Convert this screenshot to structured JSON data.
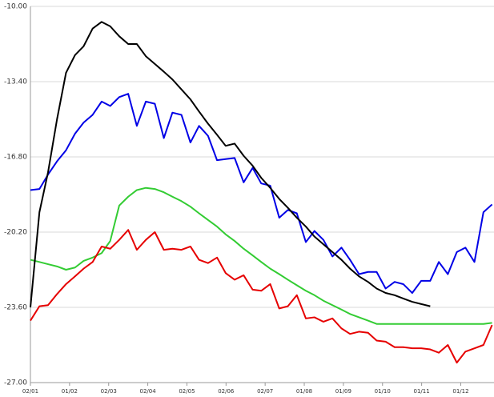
{
  "chart_data": {
    "type": "line",
    "x": [
      0,
      0.23,
      0.45,
      0.68,
      0.91,
      1.14,
      1.36,
      1.59,
      1.82,
      2.04,
      2.27,
      2.5,
      2.72,
      2.95,
      3.18,
      3.41,
      3.63,
      3.86,
      4.09,
      4.31,
      4.54,
      4.77,
      4.99,
      5.22,
      5.45,
      5.68,
      5.9,
      6.13,
      6.36,
      6.58,
      6.81,
      7.04,
      7.26,
      7.49,
      7.72,
      7.95,
      8.17,
      8.4,
      8.63,
      8.85,
      9.08,
      9.31,
      9.53,
      9.76,
      9.99,
      10.22,
      10.44,
      10.67,
      10.9,
      11.12,
      11.35,
      11.58,
      11.8
    ],
    "series": [
      {
        "color": "#33cc33",
        "values": [
          -21.45,
          -21.55,
          -21.65,
          -21.75,
          -21.9,
          -21.8,
          -21.5,
          -21.35,
          -21.15,
          -20.6,
          -19.0,
          -18.6,
          -18.3,
          -18.2,
          -18.25,
          -18.4,
          -18.6,
          -18.8,
          -19.05,
          -19.35,
          -19.65,
          -19.95,
          -20.3,
          -20.6,
          -20.95,
          -21.25,
          -21.55,
          -21.85,
          -22.1,
          -22.35,
          -22.6,
          -22.85,
          -23.05,
          -23.3,
          -23.5,
          -23.7,
          -23.9,
          -24.05,
          -24.2,
          -24.35,
          -24.35,
          -24.35,
          -24.35,
          -24.35,
          -24.35,
          -24.35,
          -24.35,
          -24.35,
          -24.35,
          -24.35,
          -24.35,
          -24.35,
          -24.3
        ]
      },
      {
        "color": "#e60000",
        "values": [
          -24.2,
          -23.55,
          -23.5,
          -23.0,
          -22.55,
          -22.2,
          -21.85,
          -21.55,
          -20.85,
          -20.95,
          -20.55,
          -20.1,
          -21.0,
          -20.55,
          -20.2,
          -21.0,
          -20.95,
          -21.0,
          -20.85,
          -21.45,
          -21.6,
          -21.35,
          -22.05,
          -22.35,
          -22.15,
          -22.8,
          -22.85,
          -22.55,
          -23.65,
          -23.55,
          -23.05,
          -24.1,
          -24.05,
          -24.25,
          -24.1,
          -24.55,
          -24.8,
          -24.7,
          -24.75,
          -25.1,
          -25.15,
          -25.4,
          -25.4,
          -25.45,
          -25.45,
          -25.5,
          -25.65,
          -25.3,
          -26.1,
          -25.6,
          -25.45,
          -25.3,
          -24.4
        ]
      },
      {
        "color": "#0000e6",
        "values": [
          -18.3,
          -18.25,
          -17.6,
          -17.0,
          -16.5,
          -15.75,
          -15.25,
          -14.9,
          -14.3,
          -14.5,
          -14.1,
          -13.95,
          -15.4,
          -14.3,
          -14.4,
          -15.95,
          -14.8,
          -14.9,
          -16.15,
          -15.4,
          -15.85,
          -16.95,
          -16.9,
          -16.85,
          -17.95,
          -17.3,
          -18.0,
          -18.1,
          -19.55,
          -19.2,
          -19.35,
          -20.65,
          -20.15,
          -20.55,
          -21.3,
          -20.9,
          -21.45,
          -22.1,
          -22.0,
          -22.0,
          -22.75,
          -22.45,
          -22.55,
          -22.95,
          -22.4,
          -22.4,
          -21.55,
          -22.1,
          -21.1,
          -20.9,
          -21.55,
          -19.3,
          -18.95
        ]
      },
      {
        "color": "#000000",
        "values": [
          -23.6,
          -19.3,
          -17.5,
          -15.1,
          -13.0,
          -12.2,
          -11.8,
          -11.0,
          -10.7,
          -10.9,
          -11.35,
          -11.7,
          -11.7,
          -12.25,
          -12.6,
          -12.95,
          -13.3,
          -13.75,
          -14.2,
          -14.75,
          -15.3,
          -15.8,
          -16.3,
          -16.2,
          -16.75,
          -17.2,
          -17.75,
          -18.2,
          -18.7,
          -19.1,
          -19.55,
          -19.95,
          -20.4,
          -20.75,
          -21.1,
          -21.45,
          -21.85,
          -22.2,
          -22.45,
          -22.75,
          -22.95,
          -23.05,
          -23.2,
          -23.35,
          -23.45,
          -23.55,
          null,
          null,
          null,
          null,
          null,
          null,
          null
        ]
      }
    ],
    "xlim": [
      0,
      11.85
    ],
    "xticks": [
      {
        "value": 0,
        "label": "02/01"
      },
      {
        "value": 1,
        "label": "01/02"
      },
      {
        "value": 2,
        "label": "02/03"
      },
      {
        "value": 3,
        "label": "02/04"
      },
      {
        "value": 4,
        "label": "02/05"
      },
      {
        "value": 5,
        "label": "02/06"
      },
      {
        "value": 6,
        "label": "02/07"
      },
      {
        "value": 7,
        "label": "01/08"
      },
      {
        "value": 8,
        "label": "01/09"
      },
      {
        "value": 9,
        "label": "01/10"
      },
      {
        "value": 10,
        "label": "01/11"
      },
      {
        "value": 11,
        "label": "01/12"
      }
    ],
    "ylim": [
      -27,
      -10
    ],
    "yticks": [
      {
        "value": -10,
        "label": "-10.00"
      },
      {
        "value": -13.4,
        "label": "-13.40"
      },
      {
        "value": -16.8,
        "label": "-16.80"
      },
      {
        "value": -20.2,
        "label": "-20.20"
      },
      {
        "value": -23.6,
        "label": "-23.60"
      },
      {
        "value": -27,
        "label": "-27.00"
      }
    ],
    "grid": true
  }
}
